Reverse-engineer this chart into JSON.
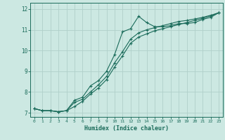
{
  "xlabel": "Humidex (Indice chaleur)",
  "bg_color": "#cce8e2",
  "grid_color": "#b0d0ca",
  "line_color": "#1a6b5a",
  "xlim": [
    -0.5,
    23.5
  ],
  "ylim": [
    6.8,
    12.3
  ],
  "xticks": [
    0,
    1,
    2,
    3,
    4,
    5,
    6,
    7,
    8,
    9,
    10,
    11,
    12,
    13,
    14,
    15,
    16,
    17,
    18,
    19,
    20,
    21,
    22,
    23
  ],
  "yticks": [
    7,
    8,
    9,
    10,
    11,
    12
  ],
  "series1_x": [
    0,
    1,
    2,
    3,
    4,
    5,
    6,
    7,
    8,
    9,
    10,
    11,
    12,
    13,
    14,
    15,
    16,
    17,
    18,
    19,
    20,
    21,
    22,
    23
  ],
  "series1_y": [
    7.2,
    7.1,
    7.1,
    7.05,
    7.1,
    7.6,
    7.75,
    8.3,
    8.55,
    9.0,
    9.8,
    10.9,
    11.05,
    11.65,
    11.35,
    11.15,
    11.15,
    11.2,
    11.3,
    11.3,
    11.35,
    11.5,
    11.6,
    11.82
  ],
  "series2_x": [
    0,
    1,
    2,
    3,
    4,
    5,
    6,
    7,
    8,
    9,
    10,
    11,
    12,
    13,
    14,
    15,
    16,
    17,
    18,
    19,
    20,
    21,
    22,
    23
  ],
  "series2_y": [
    7.2,
    7.1,
    7.1,
    7.05,
    7.1,
    7.5,
    7.65,
    8.0,
    8.35,
    8.75,
    9.4,
    9.95,
    10.55,
    10.85,
    11.0,
    11.1,
    11.2,
    11.3,
    11.4,
    11.45,
    11.52,
    11.6,
    11.7,
    11.82
  ],
  "series3_x": [
    0,
    1,
    2,
    3,
    4,
    5,
    6,
    7,
    8,
    9,
    10,
    11,
    12,
    13,
    14,
    15,
    16,
    17,
    18,
    19,
    20,
    21,
    22,
    23
  ],
  "series3_y": [
    7.2,
    7.1,
    7.1,
    7.05,
    7.1,
    7.3,
    7.55,
    7.9,
    8.2,
    8.6,
    9.2,
    9.75,
    10.35,
    10.65,
    10.8,
    10.95,
    11.05,
    11.15,
    11.25,
    11.35,
    11.45,
    11.55,
    11.67,
    11.82
  ]
}
